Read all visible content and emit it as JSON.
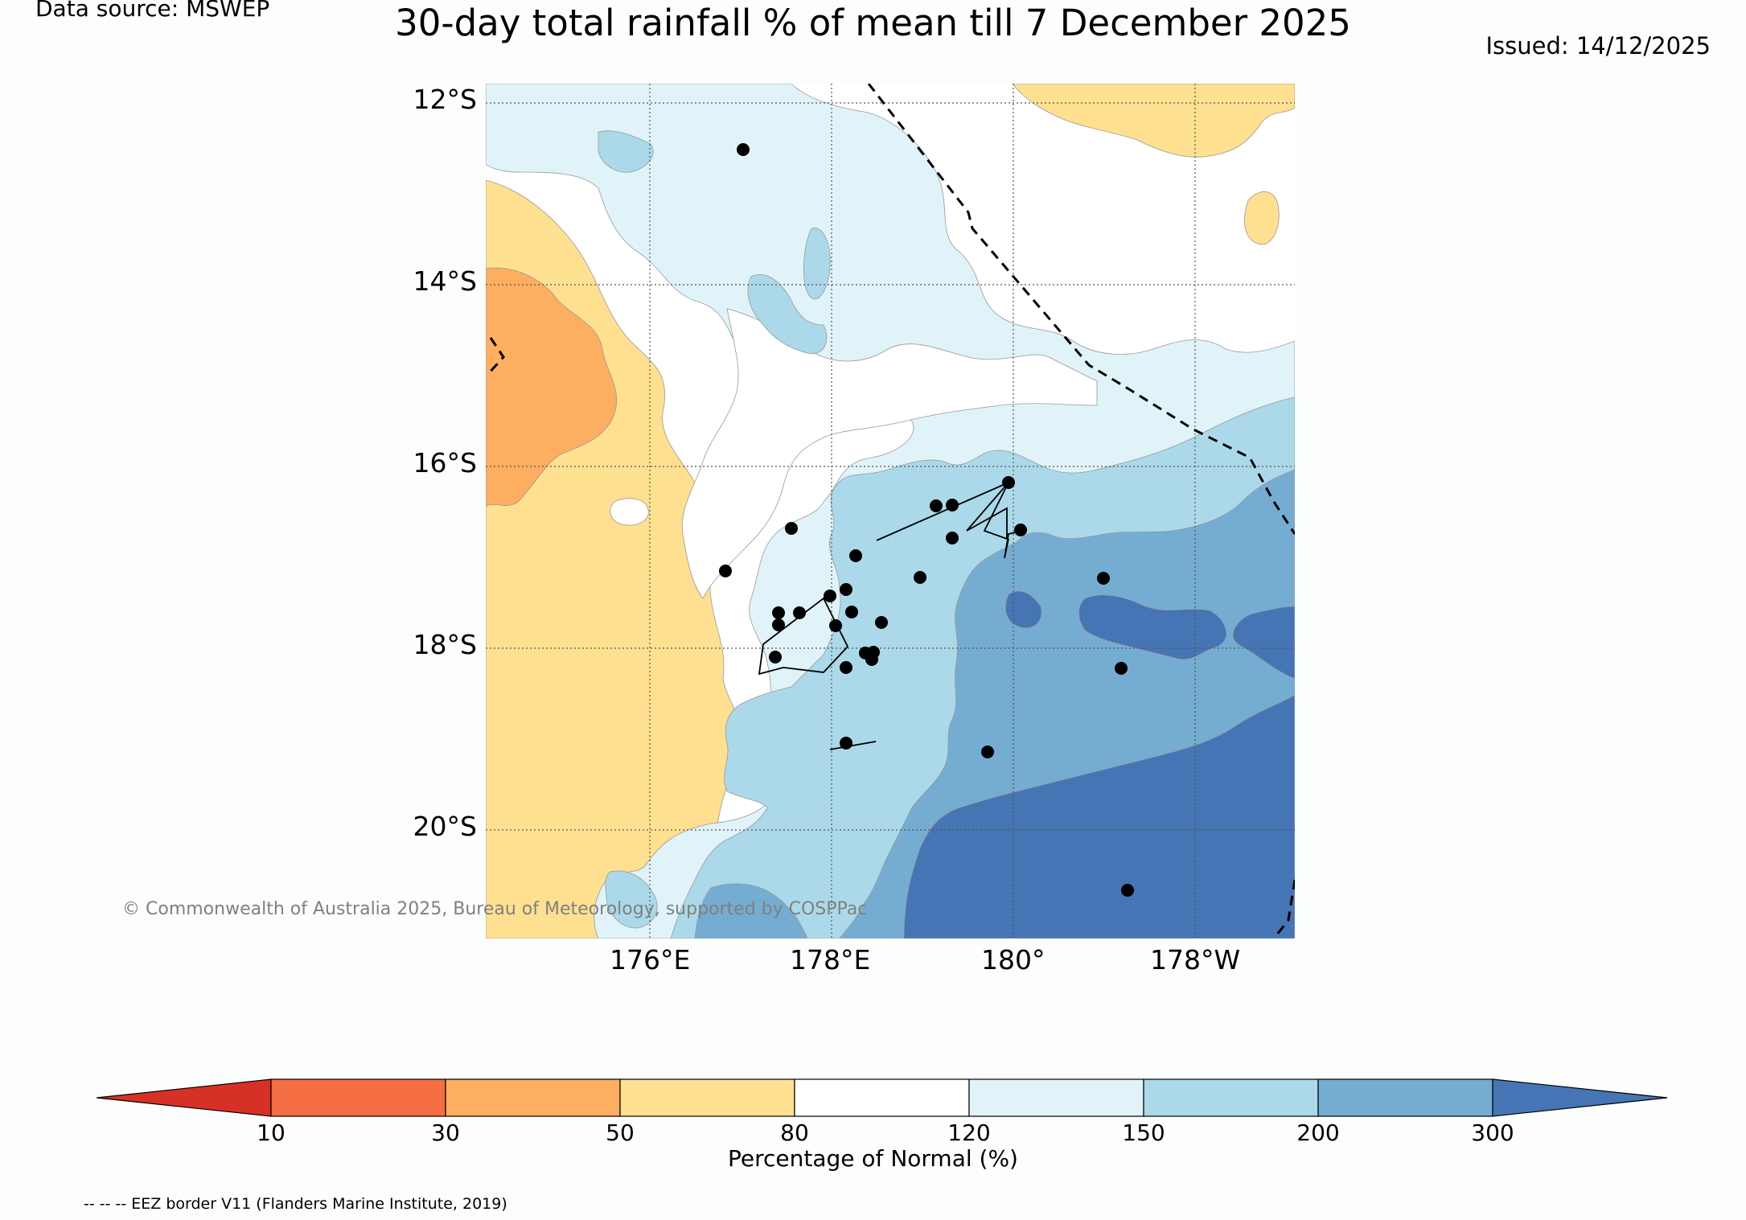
{
  "title": "30-day total rainfall % of mean till 7 December 2025",
  "data_source": "Data source: MSWEP",
  "issued": "Issued: 14/12/2025",
  "copyright": "© Commonwealth of Australia 2025, Bureau of Meteorology, supported by COSPPac",
  "eez_note": "-- -- -- EEZ border V11 (Flanders Marine Institute, 2019)",
  "map": {
    "lat_labels": [
      "12°S",
      "14°S",
      "16°S",
      "18°S",
      "20°S"
    ],
    "lon_labels": [
      "176°E",
      "178°E",
      "180°",
      "178°W"
    ]
  },
  "colorbar": {
    "label": "Percentage of Normal (%)",
    "ticks": [
      "10",
      "30",
      "50",
      "80",
      "120",
      "150",
      "200",
      "300"
    ],
    "colors": [
      "#d73027",
      "#f46d43",
      "#fdae61",
      "#fee090",
      "#ffffff",
      "#e0f3f8",
      "#abd9e9",
      "#74add1",
      "#4575b4"
    ]
  }
}
